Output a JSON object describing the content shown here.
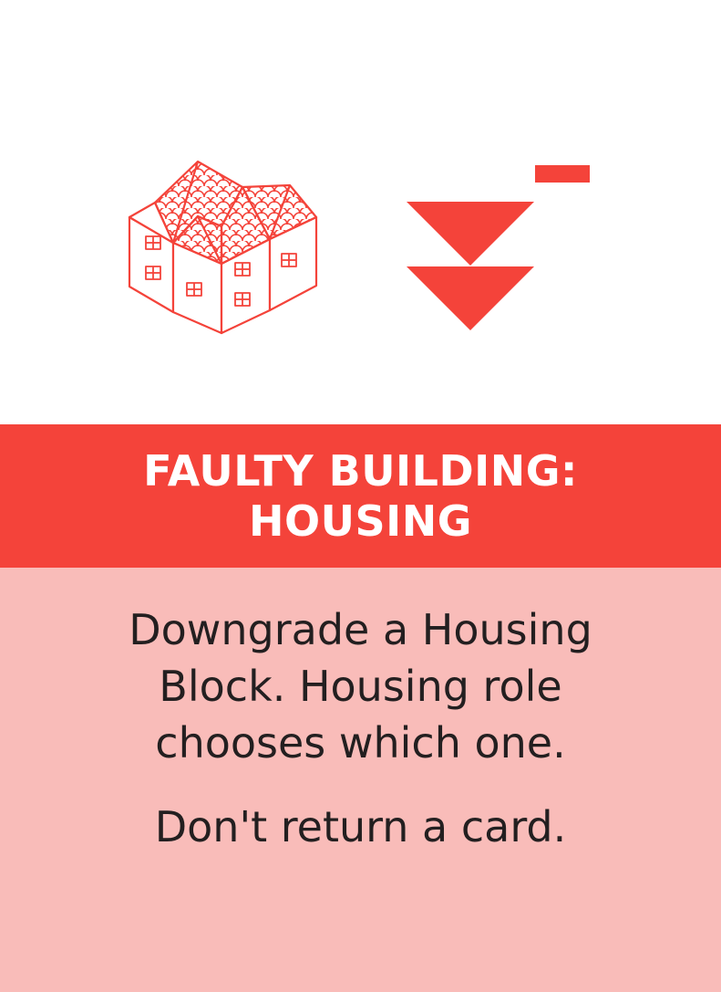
{
  "card": {
    "title_lines": [
      "FAULTY BUILDING:",
      "HOUSING"
    ],
    "effect_lines": [
      "Downgrade a Housing",
      "Block. Housing role",
      "chooses which one."
    ],
    "note": "Don't return a card."
  },
  "icons": {
    "left": "housing-block-icon",
    "right": "downgrade-icon"
  },
  "colors": {
    "accent": "#f4433a",
    "body_background": "#f9bcb9",
    "text": "#231f20",
    "background": "#ffffff"
  }
}
